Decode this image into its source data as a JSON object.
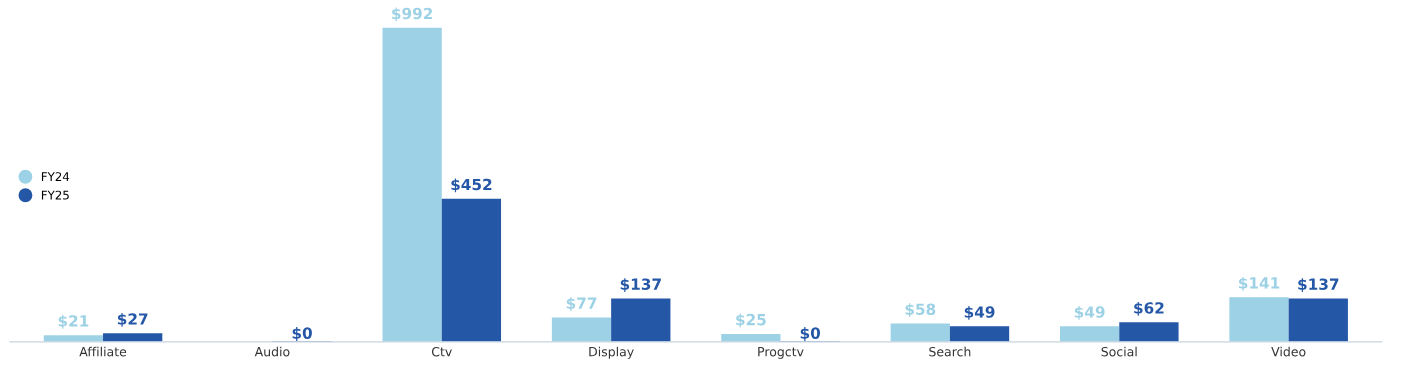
{
  "chart_data": {
    "type": "bar",
    "categories": [
      "Affiliate",
      "Audio",
      "Ctv",
      "Display",
      "Progctv",
      "Search",
      "Social",
      "Video"
    ],
    "series": [
      {
        "name": "FY24",
        "color": "#9dd2e6",
        "values": [
          21,
          null,
          992,
          77,
          25,
          58,
          49,
          141
        ],
        "value_labels": [
          "$21",
          null,
          "$992",
          "$77",
          "$25",
          "$58",
          "$49",
          "$141"
        ]
      },
      {
        "name": "FY25",
        "color": "#2557a7",
        "values": [
          27,
          0,
          452,
          137,
          0,
          49,
          62,
          137
        ],
        "value_labels": [
          "$27",
          "$0",
          "$452",
          "$137",
          "$0",
          "$49",
          "$62",
          "$137"
        ]
      }
    ],
    "legend": "left",
    "grid": false
  }
}
